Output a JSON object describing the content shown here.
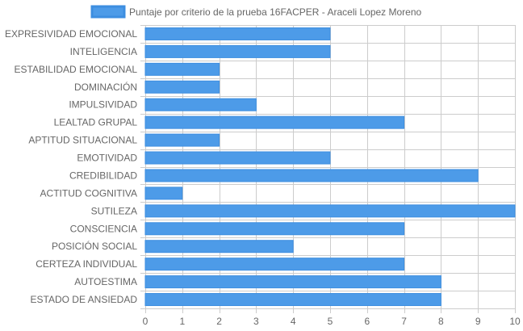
{
  "chart_data": {
    "type": "bar",
    "orientation": "horizontal",
    "categories": [
      "EXPRESIVIDAD EMOCIONAL",
      "INTELIGENCIA",
      "ESTABILIDAD EMOCIONAL",
      "DOMINACIÓN",
      "IMPULSIVIDAD",
      "LEALTAD GRUPAL",
      "APTITUD SITUACIONAL",
      "EMOTIVIDAD",
      "CREDIBILIDAD",
      "ACTITUD COGNITIVA",
      "SUTILEZA",
      "CONSCIENCIA",
      "POSICIÓN SOCIAL",
      "CERTEZA INDIVIDUAL",
      "AUTOESTIMA",
      "ESTADO DE ANSIEDAD"
    ],
    "series": [
      {
        "name": "Puntaje por criterio de la prueba 16FACPER - Araceli Lopez Moreno",
        "values": [
          5,
          5,
          2,
          2,
          3,
          7,
          2,
          5,
          9,
          1,
          10,
          7,
          4,
          7,
          8,
          8
        ]
      }
    ],
    "xlim": [
      0,
      10
    ],
    "xticks": [
      "0",
      "1",
      "2",
      "3",
      "4",
      "5",
      "6",
      "7",
      "8",
      "9",
      "10"
    ],
    "grid": true,
    "legend": "top-center",
    "colors": {
      "bar_fill": "#4d9be8",
      "bar_stroke": "#3d8ee0",
      "grid": "#cccccc",
      "text": "#666666"
    }
  }
}
